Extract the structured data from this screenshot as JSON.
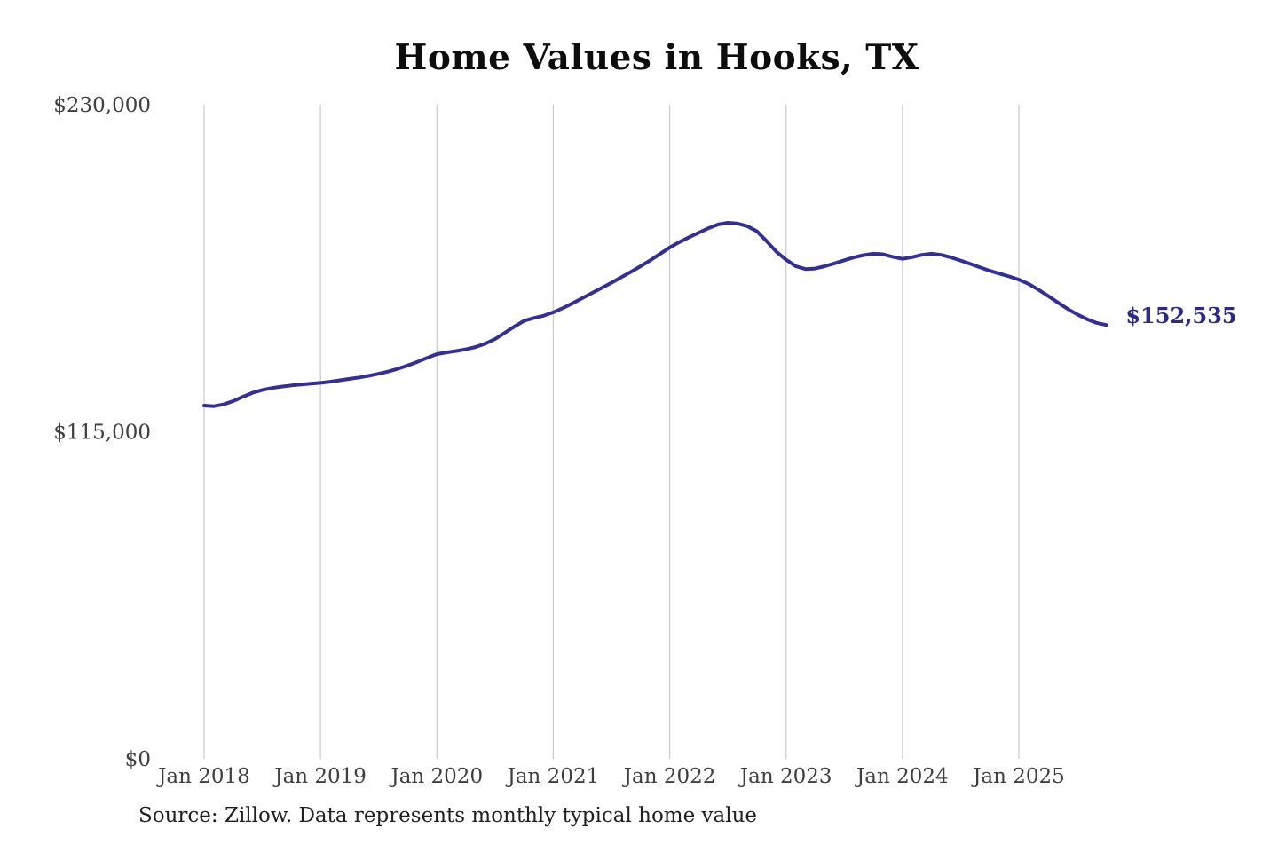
{
  "page": {
    "title": "Home Values in Hooks, TX",
    "source": "Source: Zillow. Data represents monthly typical home value"
  },
  "chart_data": {
    "type": "line",
    "title": "Home Values in Hooks, TX",
    "series_name": "Monthly typical home value",
    "frequency": "monthly",
    "x_start": "Jan 2018",
    "x_end": "Oct 2025",
    "x_ticks": [
      "Jan 2018",
      "Jan 2019",
      "Jan 2020",
      "Jan 2021",
      "Jan 2022",
      "Jan 2023",
      "Jan 2024",
      "Jan 2025"
    ],
    "y_ticks": [
      {
        "label": "$230,000",
        "value": 230000
      },
      {
        "label": "$115,000",
        "value": 115000
      },
      {
        "label": "$0",
        "value": 0
      }
    ],
    "ylim": [
      0,
      230000
    ],
    "grid": "vertical-only",
    "legend": "none",
    "end_label": "$152,535",
    "end_value": 152535,
    "colors": {
      "line": "#332f96",
      "end_label": "#2d2a85",
      "gridline": "#c9c9c9",
      "tick_label": "#3f3f3f"
    },
    "values": [
      124200,
      124000,
      124600,
      125800,
      127300,
      128700,
      129700,
      130400,
      130900,
      131300,
      131600,
      131900,
      132200,
      132600,
      133100,
      133600,
      134100,
      134700,
      135400,
      136200,
      137200,
      138300,
      139600,
      141000,
      142300,
      142900,
      143400,
      144000,
      144800,
      146000,
      147600,
      149800,
      152000,
      154000,
      155000,
      155800,
      157000,
      158500,
      160200,
      162000,
      163800,
      165600,
      167400,
      169300,
      171200,
      173200,
      175300,
      177500,
      179800,
      181700,
      183400,
      185000,
      186600,
      187900,
      188500,
      188200,
      187300,
      185500,
      182000,
      178300,
      175500,
      173200,
      172200,
      172400,
      173200,
      174200,
      175300,
      176300,
      177100,
      177600,
      177400,
      176500,
      175800,
      176400,
      177200,
      177600,
      177200,
      176300,
      175200,
      174000,
      172800,
      171600,
      170600,
      169600,
      168500,
      167000,
      165000,
      162800,
      160500,
      158300,
      156300,
      154600,
      153300,
      152535
    ]
  }
}
